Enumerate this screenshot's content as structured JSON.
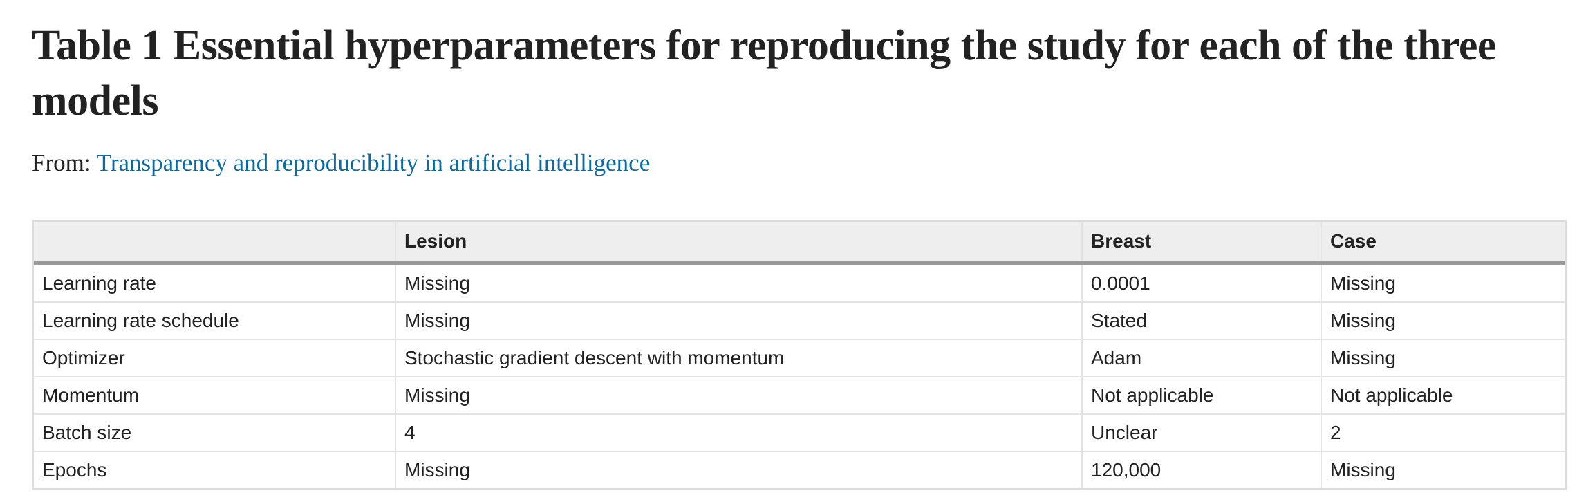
{
  "title": "Table 1 Essential hyperparameters for reproducing the study for each of the three models",
  "from": {
    "prefix": "From:",
    "link_text": "Transparency and reproducibility in artificial intelligence"
  },
  "table": {
    "headers": [
      "",
      "Lesion",
      "Breast",
      "Case"
    ],
    "rows": [
      [
        "Learning rate",
        "Missing",
        "0.0001",
        "Missing"
      ],
      [
        "Learning rate schedule",
        "Missing",
        "Stated",
        "Missing"
      ],
      [
        "Optimizer",
        "Stochastic gradient descent with momentum",
        "Adam",
        "Missing"
      ],
      [
        "Momentum",
        "Missing",
        "Not applicable",
        "Not applicable"
      ],
      [
        "Batch size",
        "4",
        "Unclear",
        "2"
      ],
      [
        "Epochs",
        "Missing",
        "120,000",
        "Missing"
      ]
    ]
  },
  "colors": {
    "link": "#0a6aa1",
    "header_bg": "#eeeeee",
    "header_rule": "#9a9a9a",
    "grid": "#e2e2e2",
    "text": "#222222"
  }
}
